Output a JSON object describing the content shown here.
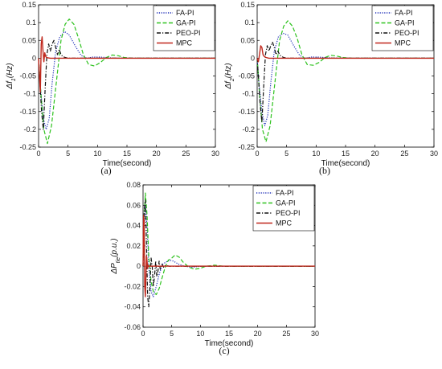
{
  "chart_data": [
    {
      "type": "line",
      "panel_label": "(a)",
      "xlabel": "Time(second)",
      "ylabel": "Δf1(Hz)",
      "ylabel_main": "Δf",
      "ylabel_sub": "1",
      "ylabel_unit": "(Hz)",
      "xlim": [
        0,
        30
      ],
      "ylim": [
        -0.25,
        0.15
      ],
      "xticks": [
        0,
        5,
        10,
        15,
        20,
        25,
        30
      ],
      "yticks": [
        -0.25,
        -0.2,
        -0.15,
        -0.1,
        -0.05,
        0,
        0.05,
        0.1,
        0.15
      ],
      "yticklabels": [
        "-0.25",
        "-0.2",
        "-0.15",
        "-0.1",
        "-0.05",
        "0",
        "0.05",
        "0.1",
        "0.15"
      ],
      "legend_position": "top-right",
      "series": [
        {
          "name": "FA-PI",
          "color": "#1f2fb8",
          "dash": "dotted",
          "x": [
            0,
            0.3,
            0.8,
            1.3,
            1.8,
            2.3,
            2.9,
            3.6,
            4.4,
            5.2,
            6.2,
            7.2,
            8.2,
            9.2,
            10.5,
            12,
            14,
            30
          ],
          "y": [
            0,
            -0.08,
            -0.17,
            -0.2,
            -0.17,
            -0.07,
            0.02,
            0.06,
            0.075,
            0.065,
            0.035,
            0.008,
            0.0,
            0.003,
            0.003,
            0.001,
            0,
            0
          ]
        },
        {
          "name": "GA-PI",
          "color": "#2ec21e",
          "dash": "dashed",
          "x": [
            0,
            0.4,
            0.9,
            1.5,
            2.2,
            3.0,
            3.8,
            4.5,
            5.2,
            6.0,
            6.8,
            7.6,
            8.5,
            9.5,
            10.5,
            11.5,
            12.5,
            13.5,
            14.5,
            16,
            30
          ],
          "y": [
            0,
            -0.1,
            -0.2,
            -0.24,
            -0.19,
            -0.07,
            0.05,
            0.095,
            0.11,
            0.095,
            0.055,
            0.01,
            -0.018,
            -0.022,
            -0.012,
            0.002,
            0.009,
            0.007,
            0.002,
            0,
            0
          ]
        },
        {
          "name": "PEO-PI",
          "color": "#111111",
          "dash": "dashdot",
          "x": [
            0,
            0.2,
            0.5,
            0.8,
            1.1,
            1.4,
            1.7,
            2.0,
            2.3,
            2.6,
            2.9,
            3.2,
            3.5,
            3.8,
            4.1,
            4.5,
            5,
            6,
            30
          ],
          "y": [
            0,
            -0.06,
            -0.15,
            -0.2,
            -0.09,
            0.01,
            0.04,
            0.02,
            0.04,
            0.05,
            0.03,
            0.01,
            0.025,
            0.01,
            0.005,
            0.002,
            0,
            0,
            0
          ]
        },
        {
          "name": "MPC",
          "color": "#c0271c",
          "dash": "solid",
          "x": [
            0,
            0.15,
            0.3,
            0.45,
            0.6,
            0.75,
            0.9,
            1.05,
            1.2,
            1.35,
            1.6,
            2.0,
            30
          ],
          "y": [
            0,
            -0.05,
            -0.095,
            0.04,
            0.06,
            0.02,
            -0.01,
            0.015,
            0.005,
            0.002,
            0.001,
            0,
            0
          ]
        }
      ]
    },
    {
      "type": "line",
      "panel_label": "(b)",
      "xlabel": "Time(second)",
      "ylabel": "Δf2(Hz)",
      "ylabel_main": "Δf",
      "ylabel_sub": "2",
      "ylabel_unit": "(Hz)",
      "xlim": [
        0,
        30
      ],
      "ylim": [
        -0.25,
        0.15
      ],
      "xticks": [
        0,
        5,
        10,
        15,
        20,
        25,
        30
      ],
      "yticks": [
        -0.25,
        -0.2,
        -0.15,
        -0.1,
        -0.05,
        0,
        0.05,
        0.1,
        0.15
      ],
      "yticklabels": [
        "-0.25",
        "-0.2",
        "-0.15",
        "-0.1",
        "-0.05",
        "0",
        "0.05",
        "0.1",
        "0.15"
      ],
      "legend_position": "top-right",
      "series": [
        {
          "name": "FA-PI",
          "color": "#1f2fb8",
          "dash": "dotted",
          "x": [
            0,
            0.3,
            0.8,
            1.3,
            1.8,
            2.3,
            2.9,
            3.6,
            4.4,
            5.2,
            6.2,
            7.2,
            8.2,
            9.2,
            10.5,
            12,
            14,
            30
          ],
          "y": [
            0,
            -0.07,
            -0.15,
            -0.19,
            -0.16,
            -0.07,
            0.02,
            0.06,
            0.07,
            0.065,
            0.035,
            0.008,
            0.0,
            0.003,
            0.003,
            0.001,
            0,
            0
          ]
        },
        {
          "name": "GA-PI",
          "color": "#2ec21e",
          "dash": "dashed",
          "x": [
            0,
            0.4,
            0.9,
            1.5,
            2.2,
            3.0,
            3.8,
            4.5,
            5.2,
            6.0,
            6.8,
            7.6,
            8.5,
            9.5,
            10.5,
            11.5,
            12.5,
            13.5,
            14.5,
            16,
            30
          ],
          "y": [
            0,
            -0.1,
            -0.2,
            -0.235,
            -0.19,
            -0.07,
            0.05,
            0.09,
            0.105,
            0.09,
            0.055,
            0.01,
            -0.018,
            -0.02,
            -0.012,
            0.002,
            0.008,
            0.006,
            0.002,
            0,
            0
          ]
        },
        {
          "name": "PEO-PI",
          "color": "#111111",
          "dash": "dashdot",
          "x": [
            0,
            0.2,
            0.5,
            0.8,
            1.1,
            1.4,
            1.7,
            2.0,
            2.3,
            2.6,
            2.9,
            3.2,
            3.5,
            3.8,
            4.1,
            4.5,
            5,
            6,
            30
          ],
          "y": [
            0,
            -0.05,
            -0.13,
            -0.18,
            -0.08,
            0.01,
            0.035,
            0.02,
            0.035,
            0.045,
            0.03,
            0.01,
            0.02,
            0.01,
            0.005,
            0.002,
            0,
            0,
            0
          ]
        },
        {
          "name": "MPC",
          "color": "#c0271c",
          "dash": "solid",
          "x": [
            0,
            0.2,
            0.4,
            0.6,
            0.8,
            1.0,
            1.2,
            1.5,
            2.0,
            30
          ],
          "y": [
            0,
            -0.01,
            0.01,
            0.035,
            0.03,
            0.01,
            0.005,
            0.002,
            0,
            0
          ]
        }
      ]
    },
    {
      "type": "line",
      "panel_label": "(c)",
      "xlabel": "Time(second)",
      "ylabel": "ΔPtie(p.u.)",
      "ylabel_main": "ΔP",
      "ylabel_sub": "tie",
      "ylabel_unit": "(p.u.)",
      "xlim": [
        0,
        30
      ],
      "ylim": [
        -0.06,
        0.08
      ],
      "xticks": [
        0,
        5,
        10,
        15,
        20,
        25,
        30
      ],
      "yticks": [
        -0.06,
        -0.04,
        -0.02,
        0,
        0.02,
        0.04,
        0.06,
        0.08
      ],
      "yticklabels": [
        "-0.06",
        "-0.04",
        "-0.02",
        "0",
        "0.02",
        "0.04",
        "0.06",
        "0.08"
      ],
      "legend_position": "top-right",
      "series": [
        {
          "name": "FA-PI",
          "color": "#1f2fb8",
          "dash": "dotted",
          "x": [
            0,
            0.2,
            0.4,
            0.7,
            1.0,
            1.4,
            1.8,
            2.3,
            2.8,
            3.4,
            4.0,
            4.6,
            5.3,
            6.2,
            7.2,
            8.5,
            10,
            12,
            30
          ],
          "y": [
            0,
            0.04,
            0.06,
            0.04,
            0.0,
            -0.025,
            -0.03,
            -0.02,
            -0.008,
            0.002,
            0.004,
            0.006,
            0.005,
            0.002,
            0.0,
            -0.001,
            0,
            0,
            0
          ]
        },
        {
          "name": "GA-PI",
          "color": "#2ec21e",
          "dash": "dashed",
          "x": [
            0,
            0.2,
            0.4,
            0.7,
            1.0,
            1.4,
            1.8,
            2.3,
            2.8,
            3.3,
            3.8,
            4.4,
            5.0,
            5.6,
            6.3,
            7.0,
            8.0,
            9.0,
            10.0,
            11.0,
            12.5,
            14,
            30
          ],
          "y": [
            0,
            0.05,
            0.072,
            0.05,
            0.01,
            -0.015,
            -0.025,
            -0.028,
            -0.022,
            -0.012,
            -0.002,
            0.006,
            0.008,
            0.011,
            0.009,
            0.004,
            -0.001,
            -0.003,
            -0.002,
            0.0,
            0.001,
            0,
            0
          ]
        },
        {
          "name": "PEO-PI",
          "color": "#111111",
          "dash": "dashdot",
          "x": [
            0,
            0.2,
            0.4,
            0.6,
            0.8,
            1.0,
            1.2,
            1.4,
            1.6,
            1.8,
            2.0,
            2.2,
            2.4,
            2.6,
            2.8,
            3.0,
            3.3,
            3.6,
            4.0,
            4.5,
            5,
            30
          ],
          "y": [
            0,
            0.055,
            0.065,
            0.02,
            -0.03,
            -0.04,
            -0.02,
            0.008,
            0.0,
            -0.02,
            -0.01,
            0.005,
            -0.01,
            -0.005,
            0.005,
            -0.003,
            0.002,
            -0.001,
            0.001,
            0,
            0,
            0
          ]
        },
        {
          "name": "MPC",
          "color": "#c0271c",
          "dash": "solid",
          "x": [
            0,
            0.1,
            0.2,
            0.3,
            0.4,
            0.5,
            0.6,
            0.7,
            0.8,
            0.9,
            1.0,
            1.2,
            1.5,
            2.0,
            30
          ],
          "y": [
            0,
            0.05,
            0.045,
            -0.02,
            -0.03,
            -0.01,
            0.01,
            0.005,
            -0.002,
            0.001,
            0.0,
            0.0,
            0,
            0,
            0
          ]
        }
      ]
    }
  ]
}
